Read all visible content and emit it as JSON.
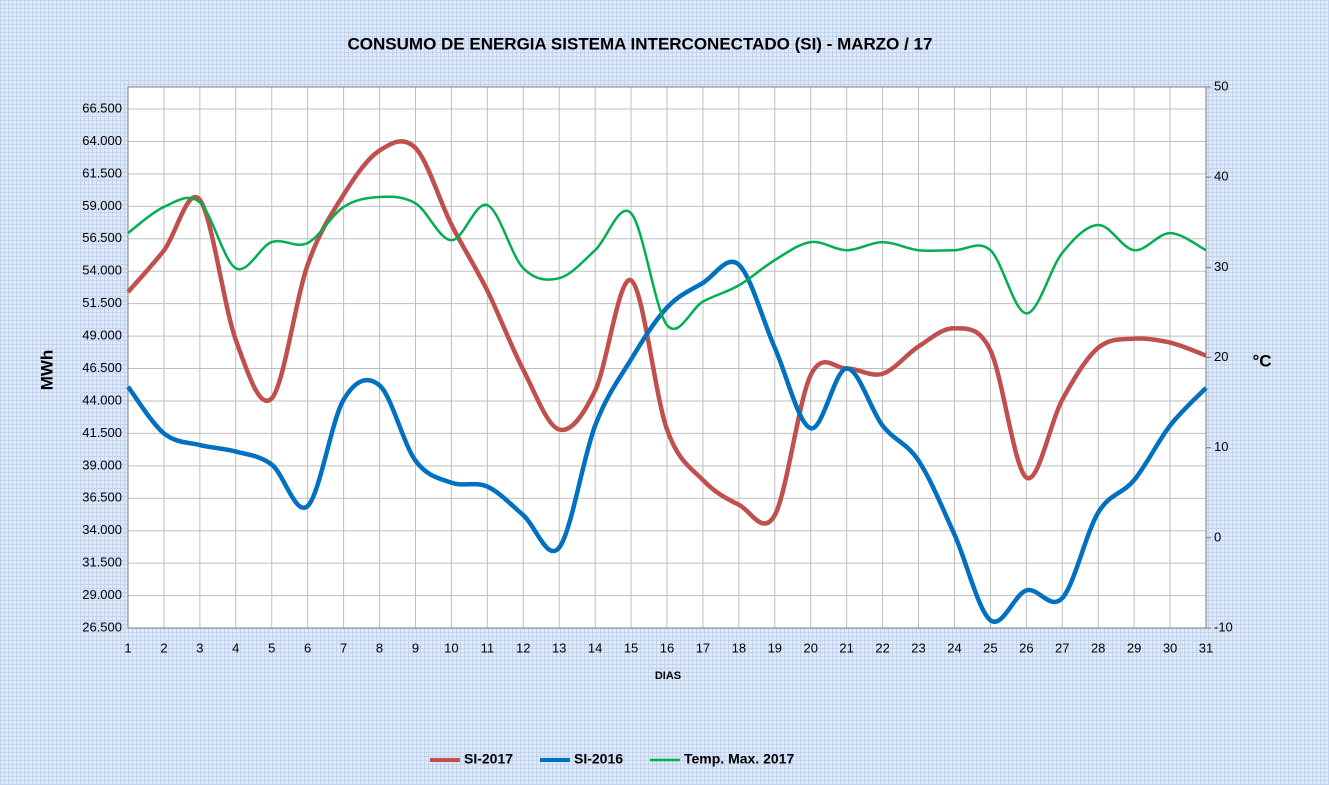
{
  "chart_data": {
    "type": "line",
    "title": "CONSUMO DE ENERGIA SISTEMA INTERCONECTADO (SI) -  MARZO / 17",
    "x_label": "DIAS",
    "y_label": "MWh",
    "y2_label": "°C",
    "categories": [
      "1",
      "2",
      "3",
      "4",
      "5",
      "6",
      "7",
      "8",
      "9",
      "10",
      "11",
      "12",
      "13",
      "14",
      "15",
      "16",
      "17",
      "18",
      "19",
      "20",
      "21",
      "22",
      "23",
      "24",
      "25",
      "26",
      "27",
      "28",
      "29",
      "30",
      "31"
    ],
    "series": [
      {
        "name": "SI-2017",
        "color": "#c0504d",
        "values": [
          52400,
          55600,
          59500,
          48700,
          44200,
          54500,
          59900,
          63300,
          63500,
          57600,
          52500,
          46400,
          41800,
          44800,
          53300,
          41800,
          37900,
          36000,
          35200,
          46000,
          46500,
          46100,
          48200,
          49600,
          47900,
          38100,
          44100,
          48100,
          48800,
          48500,
          47500
        ]
      },
      {
        "name": "SI-2016",
        "color": "#0070c0",
        "values": [
          45100,
          41500,
          40600,
          40100,
          39100,
          35900,
          44100,
          45200,
          39400,
          37700,
          37400,
          35200,
          32700,
          42100,
          47200,
          51200,
          53100,
          54500,
          48100,
          41900,
          46500,
          42100,
          39400,
          33700,
          27100,
          29400,
          28800,
          35400,
          37900,
          42100,
          45000
        ]
      },
      {
        "name": "Temp. Max. 2017",
        "color": "#00b050",
        "axis": "y2",
        "values": [
          33.8,
          36.7,
          37.2,
          29.9,
          32.8,
          32.7,
          36.7,
          37.8,
          37.1,
          33.0,
          36.9,
          29.9,
          28.8,
          31.9,
          36.0,
          23.6,
          26.2,
          28.0,
          30.8,
          32.8,
          31.9,
          32.8,
          31.9,
          31.9,
          31.9,
          24.9,
          31.6,
          34.7,
          31.9,
          33.8,
          31.9
        ]
      }
    ],
    "ylim": [
      26500,
      68200
    ],
    "yticks": [
      {
        "value": 26500,
        "label": "26.500"
      },
      {
        "value": 29000,
        "label": "29.000"
      },
      {
        "value": 31500,
        "label": "31.500"
      },
      {
        "value": 34000,
        "label": "34.000"
      },
      {
        "value": 36500,
        "label": "36.500"
      },
      {
        "value": 39000,
        "label": "39.000"
      },
      {
        "value": 41500,
        "label": "41.500"
      },
      {
        "value": 44000,
        "label": "44.000"
      },
      {
        "value": 46500,
        "label": "46.500"
      },
      {
        "value": 49000,
        "label": "49.000"
      },
      {
        "value": 51500,
        "label": "51.500"
      },
      {
        "value": 54000,
        "label": "54.000"
      },
      {
        "value": 56500,
        "label": "56.500"
      },
      {
        "value": 59000,
        "label": "59.000"
      },
      {
        "value": 61500,
        "label": "61.500"
      },
      {
        "value": 64000,
        "label": "64.000"
      },
      {
        "value": 66500,
        "label": "66.500"
      }
    ],
    "y2lim": [
      -10,
      50
    ],
    "y2ticks": [
      -10,
      0,
      10,
      20,
      30,
      40,
      50
    ],
    "grid": true,
    "legend": "bottom"
  }
}
